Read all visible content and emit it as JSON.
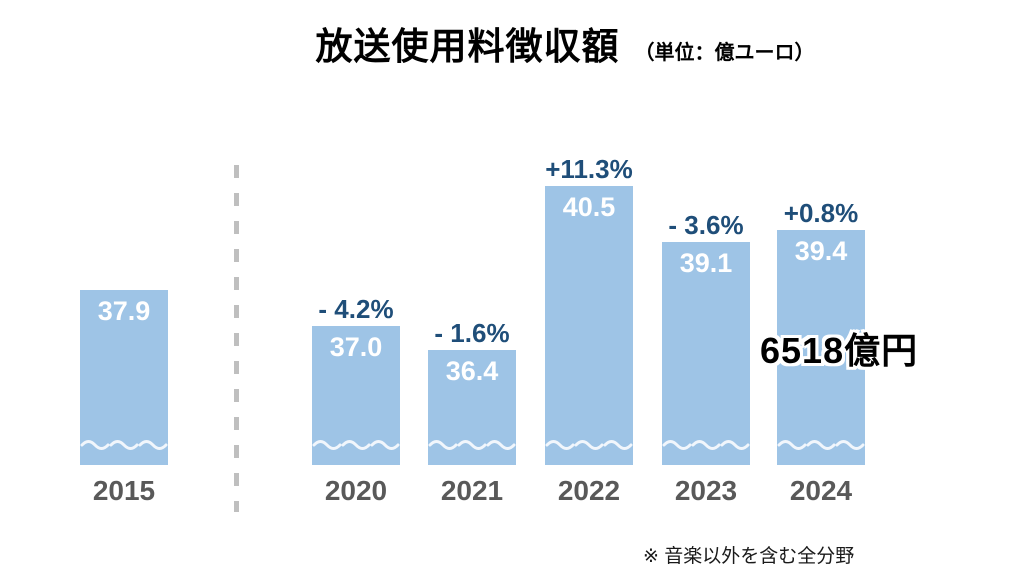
{
  "header": {
    "title_main": "放送使用料徴収額",
    "title_unit": "（単位：億ユーロ）"
  },
  "annotation": {
    "yen_total": "6518億円"
  },
  "footnote": "※ 音楽以外を含む全分野",
  "colors": {
    "bar_fill": "#9EC4E6",
    "change_label": "#1F4E79",
    "value_label": "#FFFFFF",
    "year_label": "#595959",
    "divider": "#BFBFBF",
    "annotation_text": "#000000",
    "background": "#FFFFFF"
  },
  "chart_data": {
    "type": "bar",
    "title": "放送使用料徴収額",
    "unit_label": "億ユーロ",
    "categories": [
      "2015",
      "2020",
      "2021",
      "2022",
      "2023",
      "2024"
    ],
    "values": [
      37.9,
      37.0,
      36.4,
      40.5,
      39.1,
      39.4
    ],
    "value_labels": [
      "37.9",
      "37.0",
      "36.4",
      "40.5",
      "39.1",
      "39.4"
    ],
    "change_labels": [
      "",
      "- 4.2%",
      "- 1.6%",
      "+11.3%",
      "- 3.6%",
      "+0.8%"
    ],
    "xlabel": "",
    "ylabel": "",
    "ylim": [
      33.5,
      41.2
    ],
    "axis_break": true,
    "grid": false,
    "legend": "none",
    "annotation_on_category": "2024",
    "annotation_text": "6518億円"
  }
}
